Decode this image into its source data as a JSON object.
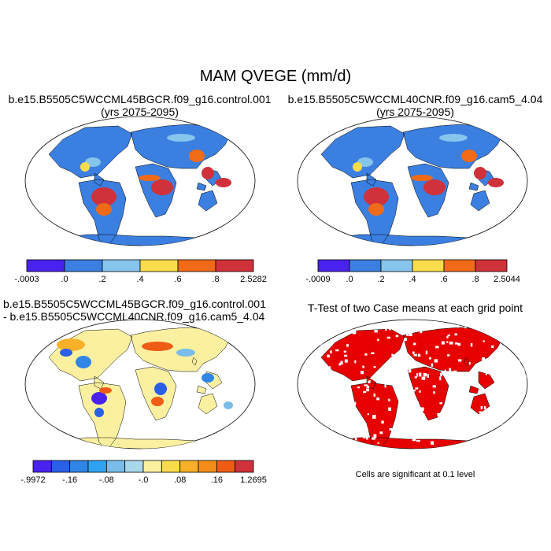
{
  "title": "MAM QVEGE (mm/d)",
  "panels": [
    {
      "id": "p1",
      "title_line1": "b.e15.B5505C5WCCML45BGCR.f09_g16.control.001",
      "title_line2": "(yrs 2075-2095)",
      "type": "field",
      "colorbar": {
        "colors": [
          "#4A22F0",
          "#3B7FE0",
          "#86C5EC",
          "#F9DC4C",
          "#F06A17",
          "#D0313A"
        ],
        "labels": [
          "-.0003",
          ".0",
          ".2",
          ".4",
          ".6",
          ".8",
          "2.5282"
        ]
      }
    },
    {
      "id": "p2",
      "title_line1": "b.e15.B5505C5WCCML40CNR.f09_g16.cam5_4.04",
      "title_line2": "(yrs 2075-2095)",
      "type": "field",
      "colorbar": {
        "colors": [
          "#4A22F0",
          "#3B7FE0",
          "#86C5EC",
          "#F9DC4C",
          "#F06A17",
          "#D0313A"
        ],
        "labels": [
          "-.0009",
          ".0",
          ".2",
          ".4",
          ".6",
          ".8",
          "2.5044"
        ]
      }
    },
    {
      "id": "p3",
      "title_line1": "b.e15.B5505C5WCCML45BGCR.f09_g16.control.001",
      "title_line2": "- b.e15.B5505C5WCCML40CNR.f09_g16.cam5_4.04",
      "type": "difference",
      "colorbar": {
        "colors": [
          "#4A22F0",
          "#2A5FE8",
          "#2F86E6",
          "#2FA3F2",
          "#7ABDEA",
          "#A9D7EC",
          "#FBF0A0",
          "#F9DC4C",
          "#F7B128",
          "#F58E18",
          "#EE5C16",
          "#D0313A"
        ],
        "labels": [
          "-.9972",
          "-.16",
          "-.08",
          "-.0",
          ".08",
          ".16",
          "1.2695"
        ]
      }
    },
    {
      "id": "p4",
      "title_line1": "T-Test of two Case means at each grid point",
      "type": "ttest",
      "footnote": "Cells are significant at 0.1 level"
    }
  ],
  "palette": {
    "ocean": "#ffffff",
    "border": "#000000",
    "land_field": "#3B7FE0",
    "significant": "#E60000"
  }
}
